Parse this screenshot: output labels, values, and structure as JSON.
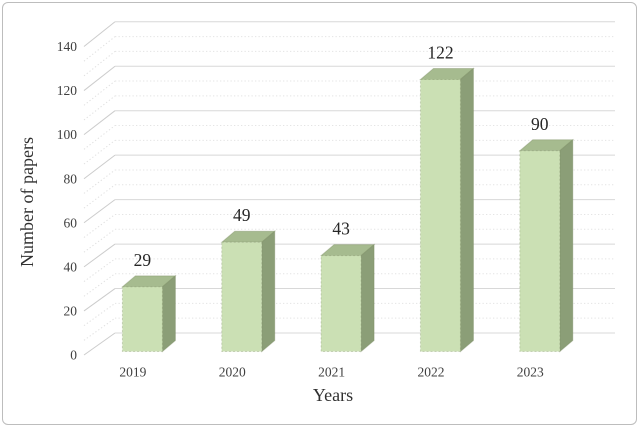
{
  "window": {
    "background": "#ffffff",
    "frame_border_color": "#bdbdbd"
  },
  "chart_data": {
    "type": "bar",
    "style": "3d-column",
    "title": "",
    "xlabel": "Years",
    "ylabel": "Number of papers",
    "categories": [
      "2019",
      "2020",
      "2021",
      "2022",
      "2023"
    ],
    "values": [
      29,
      49,
      43,
      122,
      90
    ],
    "data_labels": [
      "29",
      "49",
      "43",
      "122",
      "90"
    ],
    "ylim": [
      0,
      140
    ],
    "y_major_step": 20,
    "y_minor_divisions": 3,
    "y_tick_labels": [
      "0",
      "20",
      "40",
      "60",
      "80",
      "100",
      "120",
      "140"
    ],
    "legend": "none",
    "grid": "major-solid, minor-dotted, left side-wall diagonals",
    "colors": {
      "bar_front": "#cbe0b4",
      "bar_top": "#a6bb8f",
      "bar_side": "#8b9e77",
      "bar_edge": "#76885c",
      "grid_major": "#d8d8d8",
      "grid_minor": "#e4e4e4",
      "diag_major": "#cccccc",
      "diag_minor": "#e0e0e0",
      "tick_text": "#3f3f3f",
      "value_text": "#262626",
      "title_text": "#303030"
    }
  }
}
